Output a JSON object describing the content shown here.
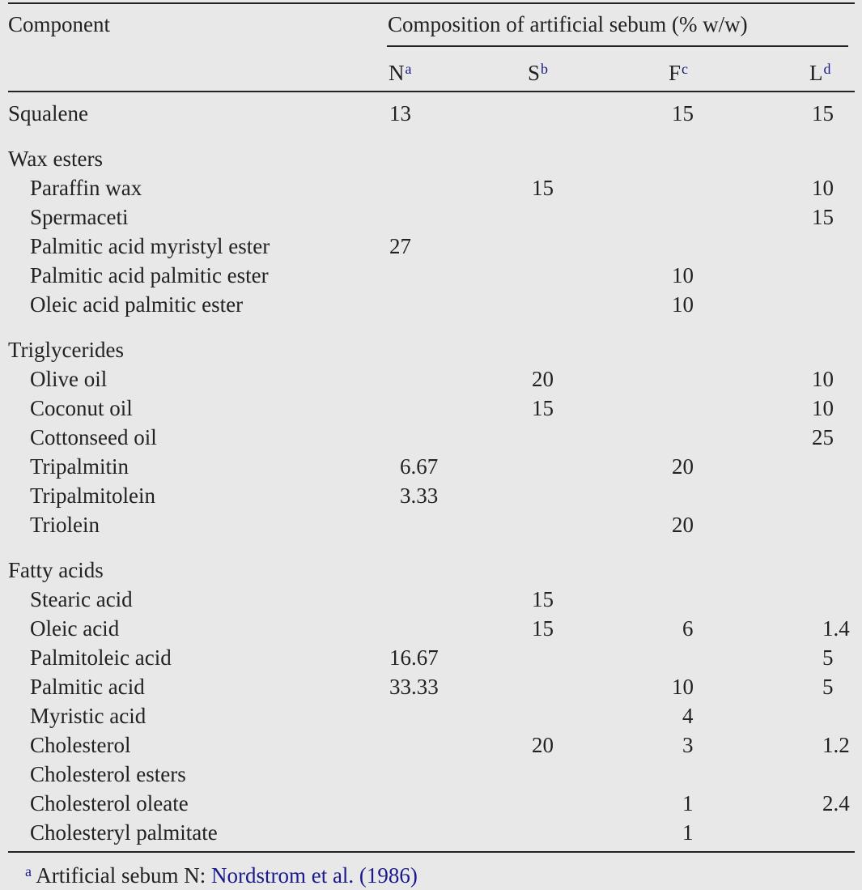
{
  "header": {
    "component": "Component",
    "group": "Composition of artificial sebum (% w/w)",
    "columns": [
      {
        "label": "N",
        "note": "a"
      },
      {
        "label": "S",
        "note": "b"
      },
      {
        "label": "F",
        "note": "c"
      },
      {
        "label": "L",
        "note": "d"
      }
    ]
  },
  "groups": [
    {
      "label": "Squalene",
      "values": [
        13,
        null,
        15,
        15
      ]
    },
    {
      "label": "Wax esters",
      "rows": [
        {
          "label": "Paraffin wax",
          "values": [
            null,
            15,
            null,
            10
          ]
        },
        {
          "label": "Spermaceti",
          "values": [
            null,
            null,
            null,
            15
          ]
        },
        {
          "label": "Palmitic acid myristyl ester",
          "values": [
            27,
            null,
            null,
            null
          ]
        },
        {
          "label": "Palmitic acid palmitic ester",
          "values": [
            null,
            null,
            10,
            null
          ]
        },
        {
          "label": "Oleic acid palmitic ester",
          "values": [
            null,
            null,
            10,
            null
          ]
        }
      ]
    },
    {
      "label": "Triglycerides",
      "rows": [
        {
          "label": "Olive oil",
          "values": [
            null,
            20,
            null,
            10
          ]
        },
        {
          "label": "Coconut oil",
          "values": [
            null,
            15,
            null,
            10
          ]
        },
        {
          "label": "Cottonseed oil",
          "values": [
            null,
            null,
            null,
            25
          ]
        },
        {
          "label": "Tripalmitin",
          "values": [
            6.67,
            null,
            20,
            null
          ]
        },
        {
          "label": "Tripalmitolein",
          "values": [
            3.33,
            null,
            null,
            null
          ]
        },
        {
          "label": "Triolein",
          "values": [
            null,
            null,
            20,
            null
          ]
        }
      ]
    },
    {
      "label": "Fatty acids",
      "rows": [
        {
          "label": "Stearic acid",
          "values": [
            null,
            15,
            null,
            null
          ]
        },
        {
          "label": "Oleic acid",
          "values": [
            null,
            15,
            6,
            1.4
          ]
        },
        {
          "label": "Palmitoleic acid",
          "values": [
            16.67,
            null,
            null,
            5
          ]
        },
        {
          "label": "Palmitic acid",
          "values": [
            33.33,
            null,
            10,
            5
          ]
        },
        {
          "label": "Myristic acid",
          "values": [
            null,
            null,
            4,
            null
          ]
        },
        {
          "label": "Cholesterol",
          "values": [
            null,
            20,
            3,
            1.2
          ]
        },
        {
          "label": "Cholesterol esters",
          "values": [
            null,
            null,
            null,
            null
          ]
        },
        {
          "label": "Cholesterol oleate",
          "values": [
            null,
            null,
            1,
            2.4
          ]
        },
        {
          "label": "Cholesteryl palmitate",
          "values": [
            null,
            null,
            1,
            null
          ]
        }
      ]
    }
  ],
  "footnote": {
    "marker": "a",
    "text": "Artificial sebum N:",
    "ref": "Nordstrom et al. (1986)"
  }
}
